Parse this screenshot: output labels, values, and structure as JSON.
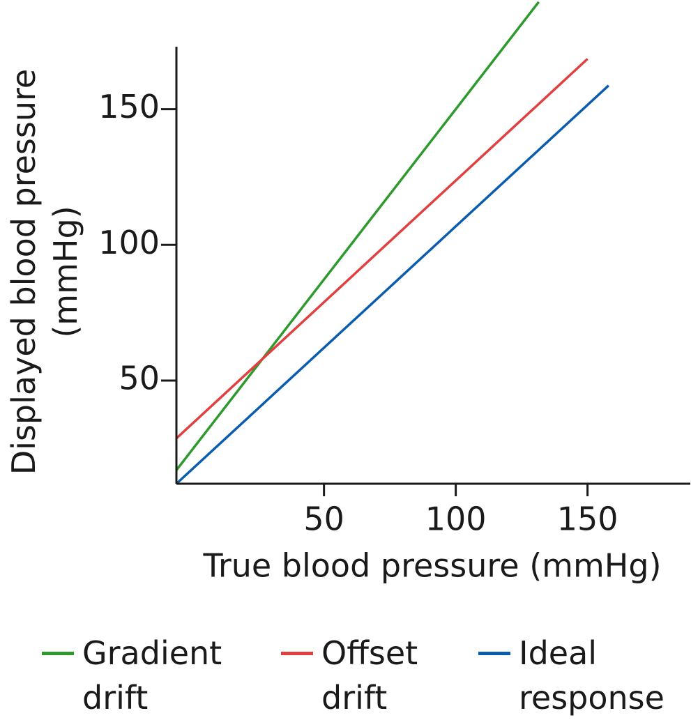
{
  "chart_data": {
    "type": "line",
    "x_label": "True blood pressure (mmHg)",
    "y_label": "Displayed blood pressure (mmHg)",
    "xlim": [
      -6,
      189
    ],
    "ylim": [
      12,
      173
    ],
    "xticks": [
      50,
      100,
      150
    ],
    "yticks": [
      50,
      100,
      150
    ],
    "series": [
      {
        "name": "Gradient drift",
        "color": "#2e9a2e",
        "x": [
          -6,
          131.5
        ],
        "values": [
          17,
          189.5
        ]
      },
      {
        "name": "Offset drift",
        "color": "#e04040",
        "x": [
          -6,
          150
        ],
        "values": [
          28.7,
          168.5
        ]
      },
      {
        "name": "Ideal response",
        "color": "#0a5cae",
        "x": [
          -6,
          158
        ],
        "values": [
          12,
          158.7
        ]
      }
    ]
  }
}
